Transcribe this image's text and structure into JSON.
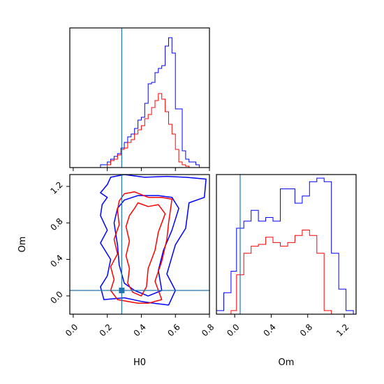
{
  "chart_data": {
    "type": "corner",
    "colors": {
      "blue": "#0000ff",
      "red": "#ff0000",
      "truth": "#1f77b4"
    },
    "params": [
      "H0",
      "Om"
    ],
    "truth": {
      "H0": 0.285,
      "Om": 0.06
    },
    "axes": {
      "H0": {
        "range": [
          -0.02,
          0.8
        ],
        "ticks": [
          0.0,
          0.2,
          0.4,
          0.6,
          0.8
        ],
        "tick_labels": [
          "0.0",
          "0.2",
          "0.4",
          "0.6",
          "0.8"
        ],
        "xlabel": "H0"
      },
      "Om": {
        "range": [
          -0.2,
          1.33
        ],
        "ticks": [
          0.0,
          0.4,
          0.8,
          1.2
        ],
        "tick_labels": [
          "0.0",
          "0.4",
          "0.8",
          "1.2"
        ],
        "xlabel": "Om",
        "ylabel": "Om",
        "y_ticks": [
          0.0,
          0.4,
          0.8,
          1.2
        ],
        "y_tick_labels": [
          "0.0",
          "0.4",
          "0.8",
          "1.2"
        ]
      }
    },
    "hist_H0": {
      "bin_edges": [
        -0.02,
        0.0,
        0.02,
        0.04,
        0.06,
        0.08,
        0.1,
        0.12,
        0.14,
        0.16,
        0.18,
        0.2,
        0.22,
        0.24,
        0.26,
        0.28,
        0.3,
        0.32,
        0.34,
        0.36,
        0.38,
        0.4,
        0.42,
        0.44,
        0.46,
        0.48,
        0.5,
        0.52,
        0.54,
        0.56,
        0.58,
        0.6,
        0.62,
        0.64,
        0.66,
        0.68,
        0.7,
        0.72,
        0.74,
        0.76,
        0.78,
        0.8
      ],
      "series": [
        {
          "color": "blue",
          "values": [
            0,
            0,
            0,
            0,
            0,
            0,
            0,
            0,
            0,
            0.02,
            0.02,
            0.04,
            0.06,
            0.08,
            0.1,
            0.14,
            0.18,
            0.22,
            0.24,
            0.28,
            0.34,
            0.36,
            0.46,
            0.6,
            0.61,
            0.68,
            0.71,
            0.73,
            0.87,
            0.93,
            0.82,
            0.42,
            0.42,
            0.12,
            0.06,
            0.04,
            0.04,
            0.02,
            0,
            0,
            0
          ]
        },
        {
          "color": "red",
          "values": [
            0,
            0,
            0,
            0,
            0,
            0,
            0,
            0,
            0,
            0,
            0,
            0.02,
            0.05,
            0.06,
            0.09,
            0.13,
            0.14,
            0.18,
            0.2,
            0.24,
            0.27,
            0.3,
            0.35,
            0.38,
            0.43,
            0.48,
            0.53,
            0.49,
            0.4,
            0.31,
            0.24,
            0.13,
            0.04,
            0.02,
            0.01,
            0,
            0,
            0,
            0,
            0,
            0
          ]
        }
      ],
      "ylim": [
        0,
        1.0
      ]
    },
    "hist_Om": {
      "bin_edges": [
        -0.2,
        -0.12,
        -0.04,
        0.02,
        0.1,
        0.18,
        0.26,
        0.34,
        0.42,
        0.5,
        0.58,
        0.66,
        0.74,
        0.82,
        0.9,
        0.98,
        1.06,
        1.14,
        1.22,
        1.3
      ],
      "series": [
        {
          "color": "blue",
          "values": [
            0.02,
            0.12,
            0.24,
            0.48,
            0.52,
            0.58,
            0.52,
            0.54,
            0.52,
            0.7,
            0.7,
            0.62,
            0.66,
            0.74,
            0.76,
            0.74,
            0.34,
            0.14,
            0.02
          ]
        },
        {
          "color": "red",
          "values": [
            0,
            0,
            0.02,
            0.22,
            0.34,
            0.38,
            0.39,
            0.43,
            0.4,
            0.38,
            0.4,
            0.44,
            0.47,
            0.44,
            0.34,
            0.02,
            0,
            0,
            0
          ]
        }
      ],
      "ylim": [
        0,
        0.78
      ]
    },
    "contours": [
      {
        "color": "blue",
        "points": [
          [
            0.22,
            1.3
          ],
          [
            0.3,
            1.33
          ],
          [
            0.42,
            1.3
          ],
          [
            0.55,
            1.31
          ],
          [
            0.66,
            1.3
          ],
          [
            0.78,
            1.28
          ],
          [
            0.77,
            1.08
          ],
          [
            0.68,
            1.02
          ],
          [
            0.66,
            0.74
          ],
          [
            0.6,
            0.56
          ],
          [
            0.55,
            0.24
          ],
          [
            0.6,
            0.06
          ],
          [
            0.56,
            -0.1
          ],
          [
            0.47,
            -0.08
          ],
          [
            0.4,
            -0.06
          ],
          [
            0.3,
            -0.02
          ],
          [
            0.18,
            -0.04
          ],
          [
            0.16,
            0.1
          ],
          [
            0.2,
            0.22
          ],
          [
            0.22,
            0.4
          ],
          [
            0.16,
            0.58
          ],
          [
            0.2,
            0.72
          ],
          [
            0.16,
            0.88
          ],
          [
            0.17,
            1.0
          ],
          [
            0.2,
            1.08
          ],
          [
            0.16,
            1.13
          ],
          [
            0.2,
            1.22
          ]
        ]
      },
      {
        "color": "blue",
        "points": [
          [
            0.3,
            1.05
          ],
          [
            0.38,
            1.1
          ],
          [
            0.5,
            1.1
          ],
          [
            0.58,
            1.08
          ],
          [
            0.62,
            0.96
          ],
          [
            0.58,
            0.72
          ],
          [
            0.53,
            0.5
          ],
          [
            0.5,
            0.28
          ],
          [
            0.52,
            0.06
          ],
          [
            0.44,
            0.0
          ],
          [
            0.36,
            0.06
          ],
          [
            0.3,
            0.14
          ],
          [
            0.27,
            0.34
          ],
          [
            0.26,
            0.56
          ],
          [
            0.24,
            0.8
          ],
          [
            0.26,
            0.96
          ]
        ]
      },
      {
        "color": "red",
        "points": [
          [
            0.3,
            1.12
          ],
          [
            0.36,
            1.14
          ],
          [
            0.44,
            1.08
          ],
          [
            0.52,
            1.08
          ],
          [
            0.58,
            1.06
          ],
          [
            0.56,
            0.8
          ],
          [
            0.55,
            0.62
          ],
          [
            0.52,
            0.38
          ],
          [
            0.48,
            0.16
          ],
          [
            0.52,
            -0.04
          ],
          [
            0.44,
            -0.08
          ],
          [
            0.38,
            -0.08
          ],
          [
            0.32,
            -0.06
          ],
          [
            0.26,
            -0.04
          ],
          [
            0.22,
            0.06
          ],
          [
            0.24,
            0.18
          ],
          [
            0.22,
            0.32
          ],
          [
            0.26,
            0.46
          ],
          [
            0.24,
            0.62
          ],
          [
            0.27,
            0.78
          ],
          [
            0.26,
            0.94
          ],
          [
            0.27,
            1.04
          ]
        ]
      },
      {
        "color": "red",
        "points": [
          [
            0.36,
            0.96
          ],
          [
            0.38,
            1.02
          ],
          [
            0.44,
            0.98
          ],
          [
            0.5,
            1.0
          ],
          [
            0.54,
            0.9
          ],
          [
            0.5,
            0.7
          ],
          [
            0.48,
            0.5
          ],
          [
            0.44,
            0.3
          ],
          [
            0.43,
            0.1
          ],
          [
            0.4,
            0.0
          ],
          [
            0.35,
            0.04
          ],
          [
            0.32,
            0.14
          ],
          [
            0.33,
            0.3
          ],
          [
            0.31,
            0.44
          ],
          [
            0.33,
            0.6
          ],
          [
            0.31,
            0.76
          ],
          [
            0.33,
            0.88
          ]
        ]
      }
    ]
  }
}
